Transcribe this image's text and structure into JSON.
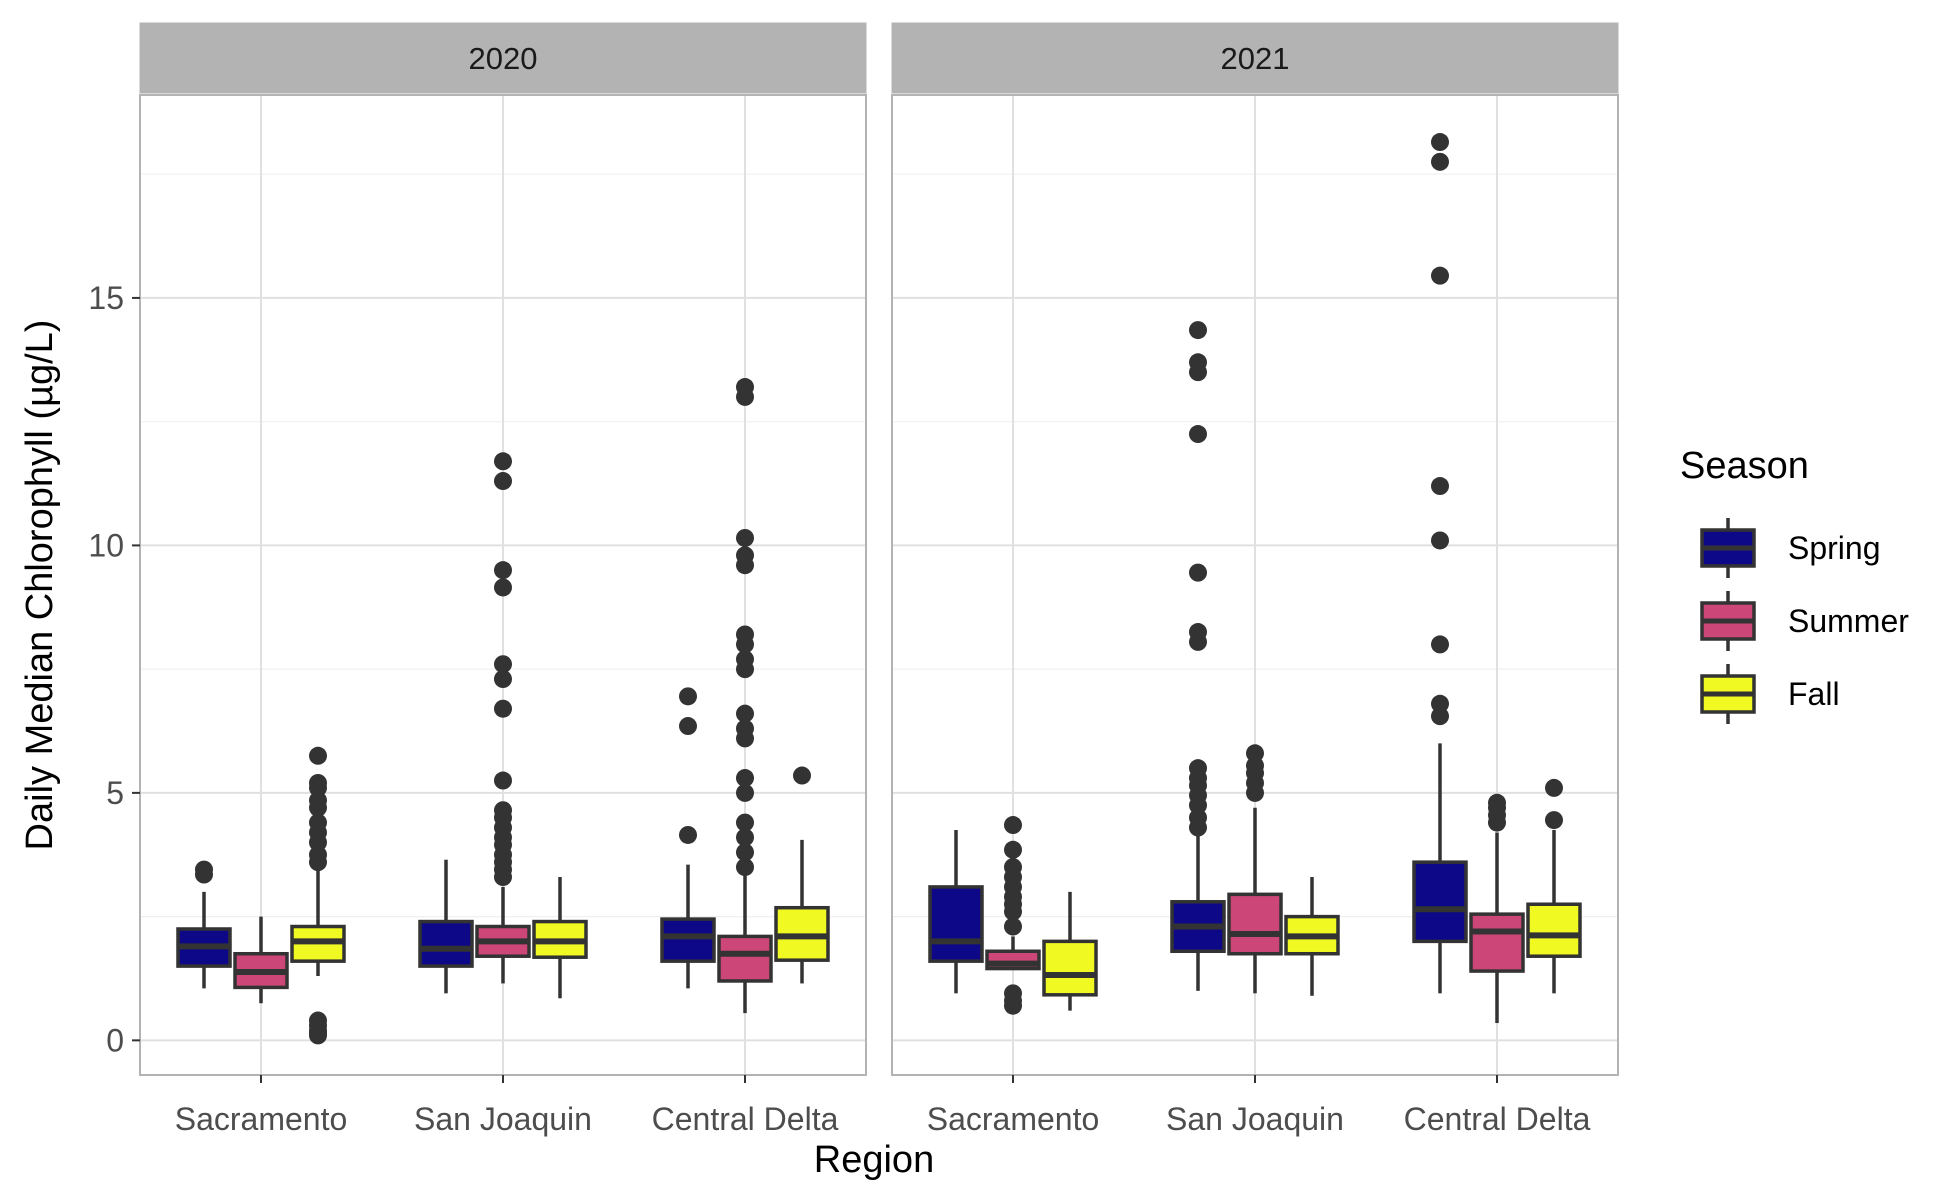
{
  "chart_data": {
    "type": "boxplot",
    "facet_labels": [
      "2020",
      "2021"
    ],
    "categories": [
      "Sacramento",
      "San Joaquin",
      "Central Delta"
    ],
    "xlabel": "Region",
    "ylabel": "Daily Median Chlorophyll (µg/L)",
    "ylim": [
      -0.7,
      19.1
    ],
    "yticks": [
      0,
      5,
      10,
      15
    ],
    "grid": true,
    "legend": {
      "title": "Season",
      "position": "right",
      "items": [
        {
          "name": "Spring",
          "color": "#0D0887"
        },
        {
          "name": "Summer",
          "color": "#CC4778"
        },
        {
          "name": "Fall",
          "color": "#F0F921"
        }
      ]
    },
    "facets": [
      {
        "label": "2020",
        "groups": [
          {
            "region": "Sacramento",
            "season": "Spring",
            "whisker_low": 1.05,
            "q1": 1.5,
            "median": 1.9,
            "q3": 2.25,
            "whisker_high": 3.0,
            "outliers": [
              3.35,
              3.45
            ]
          },
          {
            "region": "Sacramento",
            "season": "Summer",
            "whisker_low": 0.75,
            "q1": 1.07,
            "median": 1.38,
            "q3": 1.75,
            "whisker_high": 2.5,
            "outliers": []
          },
          {
            "region": "Sacramento",
            "season": "Fall",
            "whisker_low": 1.3,
            "q1": 1.6,
            "median": 2.0,
            "q3": 2.3,
            "whisker_high": 3.5,
            "outliers": [
              0.1,
              0.15,
              0.2,
              0.3,
              0.4,
              3.6,
              3.75,
              4.0,
              4.2,
              4.4,
              4.7,
              4.85,
              5.1,
              5.2,
              5.75
            ]
          },
          {
            "region": "San Joaquin",
            "season": "Spring",
            "whisker_low": 0.95,
            "q1": 1.5,
            "median": 1.85,
            "q3": 2.4,
            "whisker_high": 3.65,
            "outliers": []
          },
          {
            "region": "San Joaquin",
            "season": "Summer",
            "whisker_low": 1.15,
            "q1": 1.7,
            "median": 2.0,
            "q3": 2.3,
            "whisker_high": 3.1,
            "outliers": [
              3.3,
              3.45,
              3.6,
              3.75,
              3.95,
              4.1,
              4.3,
              4.5,
              4.65,
              5.25,
              6.7,
              7.3,
              7.6,
              9.15,
              9.5,
              11.3,
              11.7
            ]
          },
          {
            "region": "San Joaquin",
            "season": "Fall",
            "whisker_low": 0.85,
            "q1": 1.68,
            "median": 2.0,
            "q3": 2.4,
            "whisker_high": 3.3,
            "outliers": []
          },
          {
            "region": "Central Delta",
            "season": "Spring",
            "whisker_low": 1.05,
            "q1": 1.6,
            "median": 2.1,
            "q3": 2.45,
            "whisker_high": 3.55,
            "outliers": [
              4.15,
              6.35,
              6.95
            ]
          },
          {
            "region": "Central Delta",
            "season": "Summer",
            "whisker_low": 0.55,
            "q1": 1.2,
            "median": 1.75,
            "q3": 2.1,
            "whisker_high": 3.4,
            "outliers": [
              3.5,
              3.8,
              4.1,
              4.4,
              5.0,
              5.3,
              6.1,
              6.3,
              6.6,
              7.5,
              7.7,
              8.0,
              8.2,
              9.6,
              9.8,
              10.15,
              13.0,
              13.2
            ]
          },
          {
            "region": "Central Delta",
            "season": "Fall",
            "whisker_low": 1.15,
            "q1": 1.62,
            "median": 2.1,
            "q3": 2.68,
            "whisker_high": 4.05,
            "outliers": [
              5.35
            ]
          }
        ]
      },
      {
        "label": "2021",
        "groups": [
          {
            "region": "Sacramento",
            "season": "Spring",
            "whisker_low": 0.95,
            "q1": 1.6,
            "median": 2.0,
            "q3": 3.1,
            "whisker_high": 4.25,
            "outliers": []
          },
          {
            "region": "Sacramento",
            "season": "Summer",
            "whisker_low": 1.45,
            "q1": 1.45,
            "median": 1.55,
            "q3": 1.8,
            "whisker_high": 2.1,
            "outliers": [
              0.7,
              0.8,
              0.95,
              2.3,
              2.6,
              2.75,
              2.9,
              3.1,
              3.3,
              3.5,
              3.85,
              4.35
            ]
          },
          {
            "region": "Sacramento",
            "season": "Fall",
            "whisker_low": 0.6,
            "q1": 0.92,
            "median": 1.32,
            "q3": 2.0,
            "whisker_high": 3.0,
            "outliers": []
          },
          {
            "region": "San Joaquin",
            "season": "Spring",
            "whisker_low": 1.0,
            "q1": 1.8,
            "median": 2.3,
            "q3": 2.8,
            "whisker_high": 4.2,
            "outliers": [
              4.3,
              4.5,
              4.75,
              4.95,
              5.15,
              5.3,
              5.5,
              8.05,
              8.25,
              9.45,
              12.25,
              13.5,
              13.7,
              14.35
            ]
          },
          {
            "region": "San Joaquin",
            "season": "Summer",
            "whisker_low": 0.95,
            "q1": 1.75,
            "median": 2.15,
            "q3": 2.95,
            "whisker_high": 4.7,
            "outliers": [
              5.0,
              5.2,
              5.4,
              5.55,
              5.8
            ]
          },
          {
            "region": "San Joaquin",
            "season": "Fall",
            "whisker_low": 0.9,
            "q1": 1.75,
            "median": 2.1,
            "q3": 2.5,
            "whisker_high": 3.3,
            "outliers": []
          },
          {
            "region": "Central Delta",
            "season": "Spring",
            "whisker_low": 0.95,
            "q1": 2.0,
            "median": 2.65,
            "q3": 3.6,
            "whisker_high": 6.0,
            "outliers": [
              6.55,
              6.8,
              8.0,
              10.1,
              11.2,
              15.45,
              17.75,
              18.15
            ]
          },
          {
            "region": "Central Delta",
            "season": "Summer",
            "whisker_low": 0.35,
            "q1": 1.4,
            "median": 2.2,
            "q3": 2.55,
            "whisker_high": 4.2,
            "outliers": [
              4.4,
              4.55,
              4.7,
              4.8
            ]
          },
          {
            "region": "Central Delta",
            "season": "Fall",
            "whisker_low": 0.95,
            "q1": 1.7,
            "median": 2.12,
            "q3": 2.75,
            "whisker_high": 4.25,
            "outliers": [
              4.45,
              5.1
            ]
          }
        ]
      }
    ]
  }
}
